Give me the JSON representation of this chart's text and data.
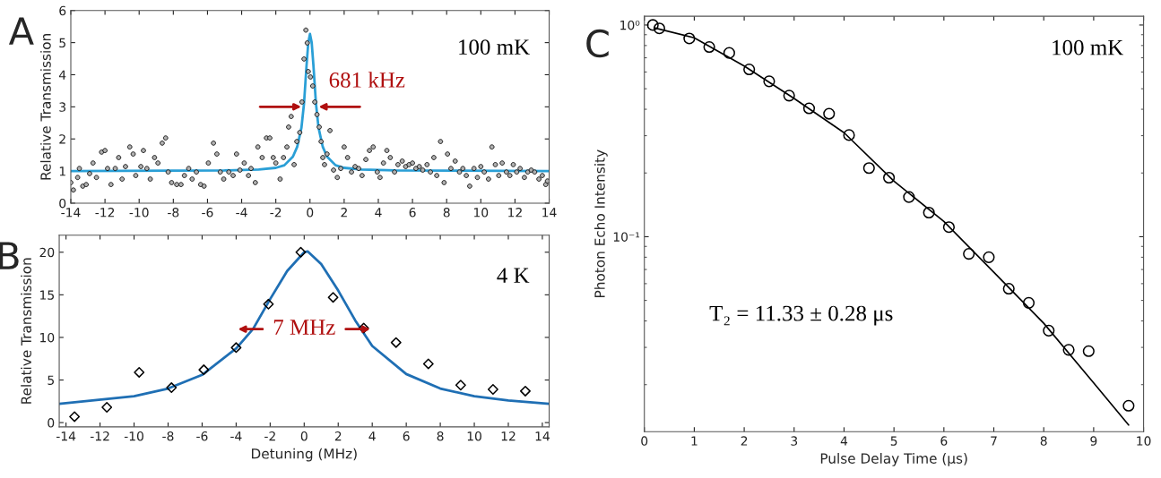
{
  "chart_data": [
    {
      "type": "scatter",
      "title": "A",
      "ylabel": "Relative Transmission",
      "xlim": [
        -14,
        14
      ],
      "ylim": [
        0,
        6
      ],
      "xticks": [
        -14,
        -12,
        -10,
        -8,
        -6,
        -4,
        -2,
        0,
        2,
        4,
        6,
        8,
        10,
        12,
        14
      ],
      "yticks": [
        0,
        1,
        2,
        3,
        4,
        5,
        6
      ],
      "annotations": [
        "100 mK",
        {
          "text": "681 kHz",
          "x": 0,
          "y": 3
        }
      ],
      "series": [
        {
          "marker": "circle",
          "color": "#000000",
          "x": [
            -14,
            -13.85,
            -13.6,
            -13.5,
            -13.3,
            -13.1,
            -12.9,
            -12.7,
            -12.5,
            -12.2,
            -12.0,
            -11.85,
            -11.65,
            -11.4,
            -11.2,
            -11.0,
            -10.8,
            -10.55,
            -10.35,
            -10.2,
            -9.9,
            -9.75,
            -9.55,
            -9.35,
            -9.1,
            -8.9,
            -8.65,
            -8.45,
            -8.3,
            -8.1,
            -7.8,
            -7.55,
            -7.35,
            -7.1,
            -6.9,
            -6.65,
            -6.4,
            -6.2,
            -5.95,
            -5.65,
            -5.45,
            -5.25,
            -5.05,
            -4.75,
            -4.5,
            -4.3,
            -4.1,
            -3.85,
            -3.6,
            -3.45,
            -3.2,
            -3.05,
            -2.8,
            -2.55,
            -2.35,
            -2.15,
            -2.0,
            -1.75,
            -1.55,
            -1.35,
            -1.25,
            -1.1,
            -0.93,
            -0.77,
            -0.6,
            -0.47,
            -0.35,
            -0.24,
            -0.16,
            -0.1,
            0.03,
            0.16,
            0.28,
            0.41,
            0.54,
            0.65,
            0.75,
            0.85,
            1.0,
            1.17,
            1.38,
            1.6,
            1.8,
            2.0,
            2.2,
            2.43,
            2.64,
            2.85,
            3.05,
            3.27,
            3.48,
            3.7,
            3.94,
            4.1,
            4.3,
            4.5,
            4.7,
            4.95,
            5.15,
            5.4,
            5.6,
            5.8,
            6.0,
            6.2,
            6.4,
            6.6,
            6.85,
            7.05,
            7.25,
            7.42,
            7.64,
            7.85,
            8.05,
            8.25,
            8.5,
            8.75,
            8.95,
            9.15,
            9.35,
            9.6,
            9.8,
            10.0,
            10.2,
            10.45,
            10.65,
            10.85,
            11.05,
            11.25,
            11.5,
            11.7,
            11.9,
            12.1,
            12.3,
            12.55,
            12.75,
            12.95,
            13.15,
            13.4,
            13.6,
            13.8,
            13.9
          ],
          "values": [
            0.64,
            0.41,
            0.8,
            1.08,
            0.53,
            0.58,
            0.92,
            1.25,
            0.8,
            1.59,
            1.64,
            1.08,
            0.58,
            1.08,
            1.42,
            0.75,
            1.14,
            1.75,
            1.53,
            0.86,
            1.14,
            1.64,
            1.08,
            0.75,
            1.42,
            1.25,
            1.87,
            2.03,
            0.97,
            0.64,
            0.58,
            0.58,
            0.86,
            1.08,
            0.75,
            0.97,
            0.58,
            0.53,
            1.25,
            1.87,
            1.53,
            0.97,
            0.75,
            0.97,
            0.86,
            1.53,
            1.03,
            1.25,
            0.86,
            1.08,
            0.64,
            1.75,
            1.42,
            2.03,
            2.03,
            1.42,
            1.25,
            0.75,
            1.42,
            1.75,
            2.37,
            2.7,
            1.2,
            1.92,
            2.2,
            3.15,
            4.49,
            5.39,
            4.99,
            4.1,
            3.93,
            3.65,
            3.15,
            2.76,
            2.37,
            1.92,
            1.42,
            1.2,
            1.53,
            2.26,
            1.03,
            0.8,
            1.08,
            1.75,
            1.42,
            0.97,
            1.14,
            1.08,
            0.86,
            1.36,
            1.64,
            1.75,
            0.97,
            0.8,
            1.25,
            1.64,
            1.42,
            0.97,
            1.2,
            1.31,
            1.14,
            1.2,
            1.25,
            1.08,
            1.14,
            1.03,
            1.2,
            0.97,
            1.42,
            0.86,
            1.92,
            0.64,
            1.53,
            1.08,
            1.31,
            0.97,
            1.08,
            0.86,
            0.53,
            1.08,
            0.8,
            1.14,
            0.97,
            0.75,
            1.75,
            1.2,
            0.86,
            1.25,
            0.97,
            0.86,
            1.2,
            0.97,
            1.08,
            0.8,
            0.97,
            1.03,
            0.97,
            0.75,
            0.86,
            0.58,
            0.69
          ]
        },
        {
          "type": "line",
          "marker": "none",
          "color": "#2a9fd6",
          "x": [
            -14,
            -5,
            -3,
            -2,
            -1.5,
            -1,
            -0.75,
            -0.5,
            -0.35,
            -0.2,
            -0.1,
            0,
            0.1,
            0.2,
            0.35,
            0.5,
            0.75,
            1,
            1.5,
            2,
            3,
            5,
            14
          ],
          "values": [
            1.0,
            1.02,
            1.05,
            1.1,
            1.18,
            1.45,
            1.75,
            2.35,
            3.1,
            4.3,
            5.0,
            5.27,
            5.0,
            4.3,
            3.1,
            2.35,
            1.75,
            1.45,
            1.18,
            1.1,
            1.05,
            1.02,
            1.0
          ]
        }
      ]
    },
    {
      "type": "scatter",
      "title": "B",
      "xlabel": "Detuning (MHz)",
      "ylabel": "Relative Transmission",
      "xlim": [
        -14.4,
        14.4
      ],
      "ylim": [
        -0.5,
        22
      ],
      "xticks": [
        -14,
        -12,
        -10,
        -8,
        -6,
        -4,
        -2,
        0,
        2,
        4,
        6,
        8,
        10,
        12,
        14
      ],
      "yticks": [
        0,
        5,
        10,
        15,
        20
      ],
      "annotations": [
        "4 K",
        "7 MHz"
      ],
      "series": [
        {
          "marker": "diamond",
          "color": "#000000",
          "x": [
            -13.5,
            -11.6,
            -9.7,
            -7.8,
            -5.9,
            -4.0,
            -2.1,
            -0.2,
            1.7,
            3.5,
            5.4,
            7.3,
            9.2,
            11.1,
            13.0
          ],
          "values": [
            0.7,
            1.8,
            5.9,
            4.1,
            6.2,
            8.8,
            13.9,
            20.0,
            14.7,
            11.1,
            9.4,
            6.9,
            4.4,
            3.9,
            3.7
          ]
        },
        {
          "type": "line",
          "marker": "none",
          "color": "#1f6fb4",
          "x": [
            -14.4,
            -10,
            -8,
            -6,
            -4,
            -3,
            -2,
            -1,
            0,
            0.2,
            1,
            2,
            3,
            4,
            6,
            8,
            10,
            12,
            14.4
          ],
          "values": [
            2.2,
            3.1,
            4.0,
            5.6,
            8.7,
            11.0,
            14.5,
            17.8,
            20.0,
            20.1,
            18.6,
            15.5,
            12.0,
            9.0,
            5.7,
            4.0,
            3.1,
            2.6,
            2.2
          ]
        }
      ]
    },
    {
      "type": "scatter",
      "title": "C",
      "xlabel": "Pulse Delay Time (μs)",
      "ylabel": "Photon Echo Intensity",
      "log": "y",
      "xlim": [
        0,
        10
      ],
      "ylim": [
        0.012,
        1.1
      ],
      "xticks": [
        0,
        1,
        2,
        3,
        4,
        5,
        6,
        7,
        8,
        9,
        10
      ],
      "yticks": [
        {
          "value": 1,
          "label": "10⁰"
        },
        {
          "value": 0.1,
          "label": "10⁻¹"
        }
      ],
      "annotations": [
        "100 mK",
        "T₂ = 11.33 ± 0.28 μs"
      ],
      "series": [
        {
          "marker": "circle",
          "color": "#000000",
          "x": [
            0.17,
            0.3,
            0.9,
            1.3,
            1.7,
            2.1,
            2.5,
            2.9,
            3.3,
            3.7,
            4.1,
            4.5,
            4.9,
            5.3,
            5.7,
            6.1,
            6.5,
            6.9,
            7.3,
            7.7,
            8.1,
            8.5,
            8.9,
            9.7
          ],
          "values": [
            1.0,
            0.964,
            0.864,
            0.787,
            0.738,
            0.617,
            0.542,
            0.464,
            0.404,
            0.381,
            0.302,
            0.211,
            0.19,
            0.154,
            0.13,
            0.111,
            0.083,
            0.08,
            0.0568,
            0.0487,
            0.036,
            0.0292,
            0.0288,
            0.0159
          ]
        },
        {
          "type": "line",
          "marker": "none",
          "color": "#000000",
          "x": [
            0.2,
            1,
            2,
            3,
            4,
            5,
            6,
            7,
            8,
            9,
            9.7
          ],
          "values": [
            0.97,
            0.87,
            0.64,
            0.45,
            0.31,
            0.183,
            0.118,
            0.068,
            0.039,
            0.0204,
            0.0129
          ]
        }
      ]
    }
  ]
}
